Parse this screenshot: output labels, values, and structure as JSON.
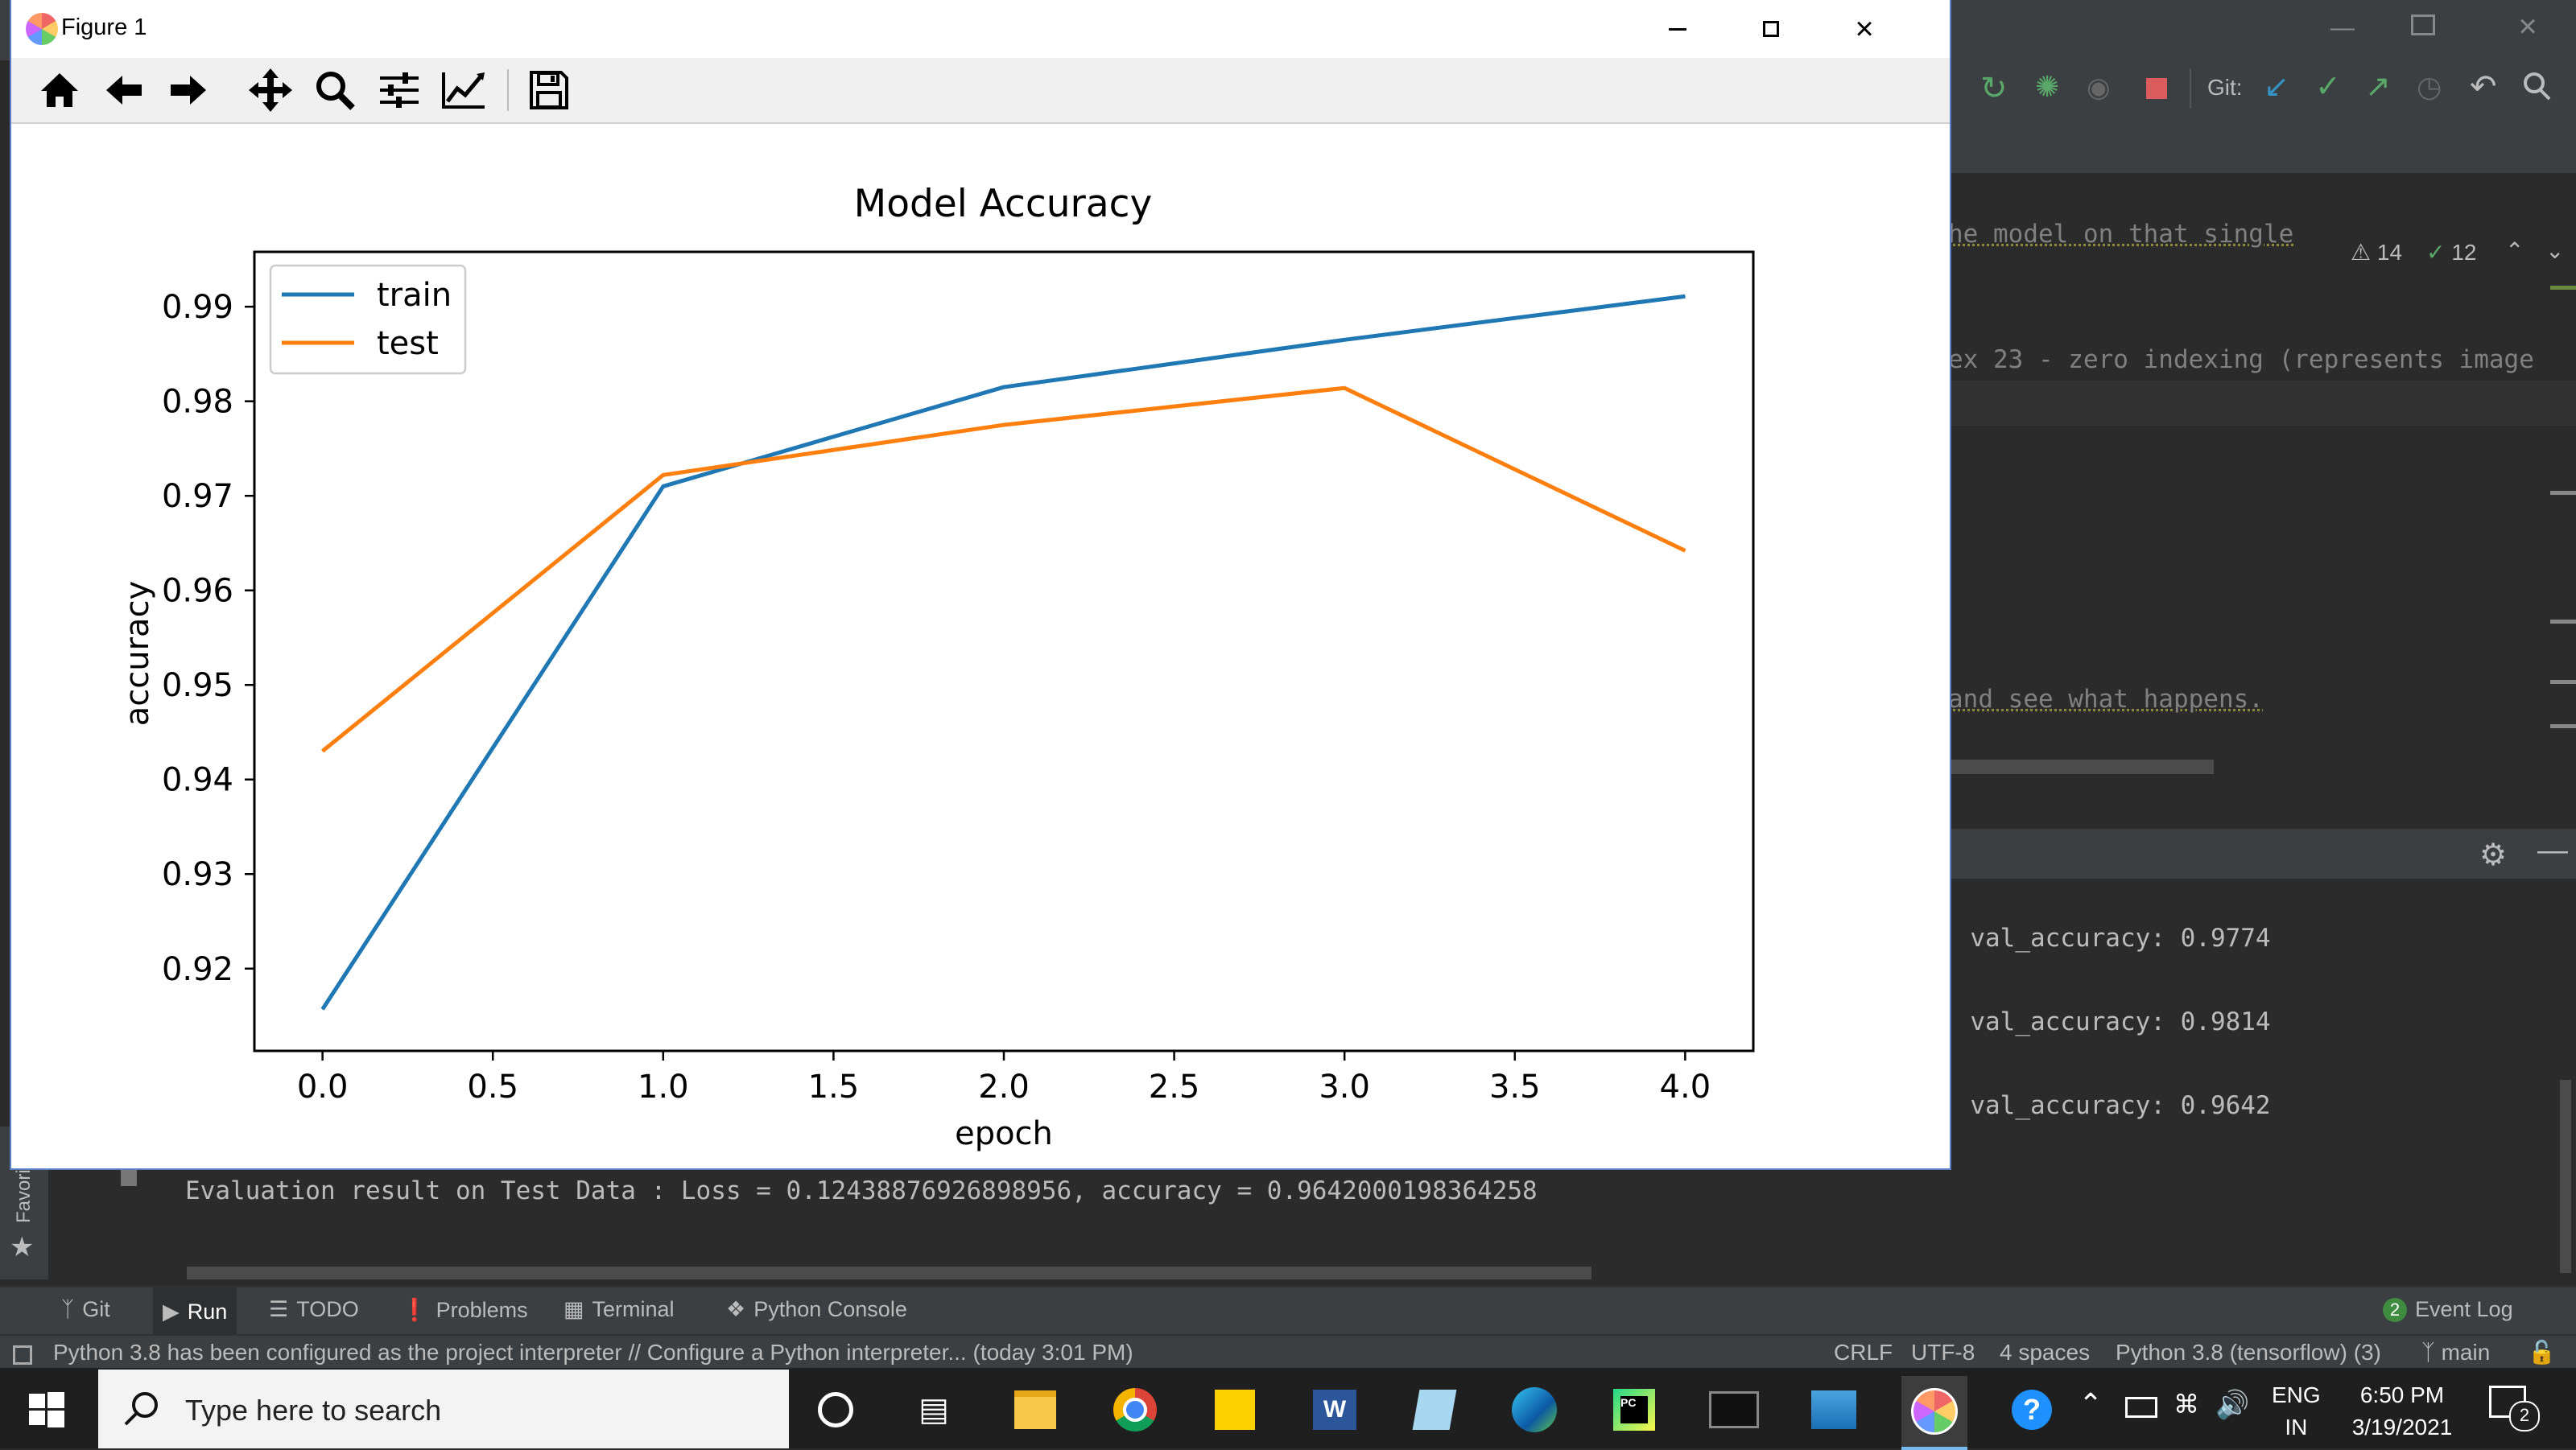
{
  "figure": {
    "title": "Figure 1",
    "toolbar": [
      "home-icon",
      "back-arrow-icon",
      "forward-arrow-icon",
      "pan-move-icon",
      "zoom-magnifier-icon",
      "configure-subplots-icon",
      "edit-axis-icon",
      "save-icon"
    ],
    "window_controls": [
      "minimize-icon",
      "maximize-icon",
      "close-icon"
    ]
  },
  "chart_data": {
    "type": "line",
    "title": "Model Accuracy",
    "xlabel": "epoch",
    "ylabel": "accuracy",
    "xlim": [
      -0.2,
      4.2
    ],
    "ylim": [
      0.9113,
      0.9958
    ],
    "xticks": [
      0.0,
      0.5,
      1.0,
      1.5,
      2.0,
      2.5,
      3.0,
      3.5,
      4.0
    ],
    "xtick_labels": [
      "0.0",
      "0.5",
      "1.0",
      "1.5",
      "2.0",
      "2.5",
      "3.0",
      "3.5",
      "4.0"
    ],
    "yticks": [
      0.92,
      0.93,
      0.94,
      0.95,
      0.96,
      0.97,
      0.98,
      0.99
    ],
    "ytick_labels": [
      "0.92",
      "0.93",
      "0.94",
      "0.95",
      "0.96",
      "0.97",
      "0.98",
      "0.99"
    ],
    "legend_position": "upper left",
    "grid": false,
    "series": [
      {
        "name": "train",
        "color": "#1f77b4",
        "x": [
          0,
          1,
          2,
          3,
          4
        ],
        "values": [
          0.9157,
          0.971,
          0.9815,
          0.9865,
          0.9911
        ]
      },
      {
        "name": "test",
        "color": "#ff7f0e",
        "x": [
          0,
          1,
          2,
          3,
          4
        ],
        "values": [
          0.943,
          0.9722,
          0.9775,
          0.9814,
          0.9642
        ]
      }
    ]
  },
  "editor": {
    "line1": "he model on that single ",
    "line2": "ex 23 - zero indexing (represents image",
    "line3": " and see what happens.",
    "warnings_count": "14",
    "ok_count": "12"
  },
  "toolbar": {
    "git_label": "Git:"
  },
  "console": {
    "val_lines": [
      "- val_accuracy: 0.9774",
      "- val_accuracy: 0.9814",
      "- val_accuracy: 0.9642"
    ],
    "eval_line": "Evaluation result on Test Data : Loss = 0.12438876926898956, accuracy = 0.9642000198364258"
  },
  "left_strip": {
    "favorites": "Favori"
  },
  "tool_windows": [
    "Git",
    "Run",
    "TODO",
    "Problems",
    "Terminal",
    "Python Console"
  ],
  "event_log": {
    "count": "2",
    "label": "Event Log"
  },
  "status": {
    "message": "Python 3.8 has been configured as the project interpreter // Configure a Python interpreter... (today 3:01 PM)",
    "line_sep": "CRLF",
    "encoding": "UTF-8",
    "indent": "4 spaces",
    "interpreter": "Python 3.8 (tensorflow) (3)",
    "branch": "main"
  },
  "taskbar": {
    "search_placeholder": "Type here to search",
    "lang_top": "ENG",
    "lang_bottom": "IN",
    "time": "6:50 PM",
    "date": "3/19/2021",
    "notifications": "2"
  }
}
